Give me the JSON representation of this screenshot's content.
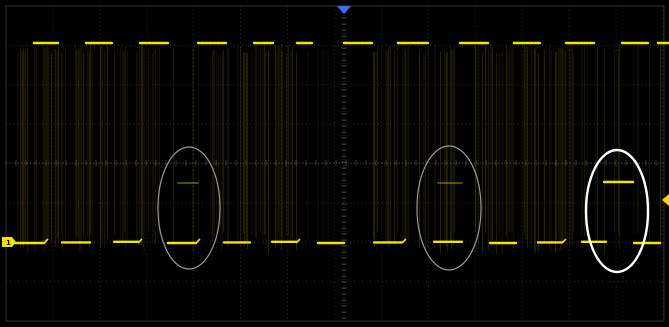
{
  "scope": {
    "channel_marker_text": "1",
    "colors": {
      "background": "#000000",
      "grid": "#3a3a3a",
      "grid_axis": "#5a5a5a",
      "trace": "#f2e600",
      "trace_dim": "#5f5b00",
      "trigger_marker": "#3b6cff",
      "level_marker": "#ffd200",
      "highlight_faint": "#9a9a9a",
      "highlight_strong": "#ffffff"
    },
    "icons": {
      "channel_marker": "channel-1-ground-marker-icon",
      "trigger_position": "trigger-position-arrow-icon",
      "trigger_level": "trigger-level-arrow-icon"
    }
  }
}
